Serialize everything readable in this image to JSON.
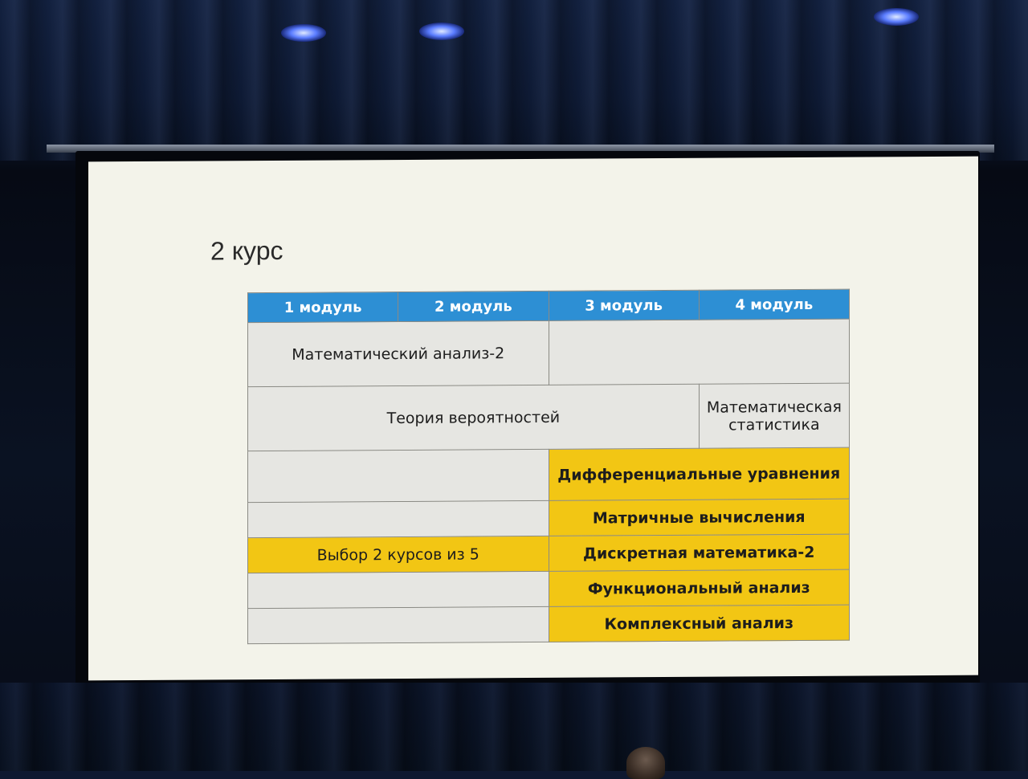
{
  "slide": {
    "title": "2 курс",
    "headers": [
      "1 модуль",
      "2 модуль",
      "3 модуль",
      "4 модуль"
    ],
    "rows": {
      "calculus": "Математический анализ-2",
      "probability": "Теория вероятностей",
      "statistics": "Математическая статистика",
      "electives_label": "Выбор 2 курсов из 5",
      "electives": [
        "Дифференциальные уравнения",
        "Матричные вычисления",
        "Дискретная математика-2",
        "Функциональный анализ",
        "Комплексный анализ"
      ]
    }
  },
  "colors": {
    "header_blue": "#2d8fd4",
    "elective_yellow": "#f2c614",
    "cell_gray": "#e6e6e2",
    "slide_bg": "#f3f3ea"
  }
}
